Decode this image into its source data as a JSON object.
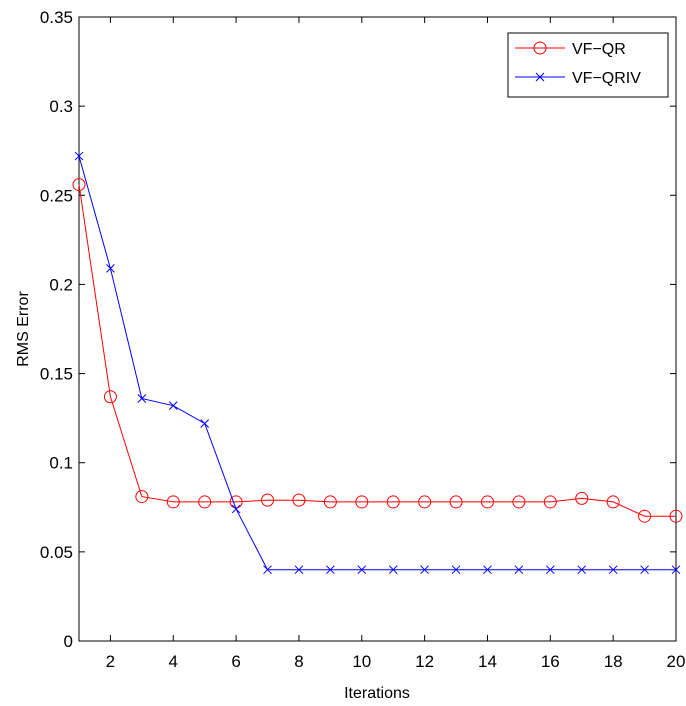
{
  "chart_data": {
    "type": "line",
    "title": "",
    "xlabel": "Iterations",
    "ylabel": "RMS Error",
    "xlim": [
      1,
      20
    ],
    "ylim": [
      0,
      0.35
    ],
    "xticks": [
      2,
      4,
      6,
      8,
      10,
      12,
      14,
      16,
      18,
      20
    ],
    "xtick_labels": [
      "2",
      "4",
      "6",
      "8",
      "10",
      "12",
      "14",
      "16",
      "18",
      "20"
    ],
    "yticks": [
      0,
      0.05,
      0.1,
      0.15,
      0.2,
      0.25,
      0.3,
      0.35
    ],
    "ytick_labels": [
      "0",
      "0.05",
      "0.1",
      "0.15",
      "0.2",
      "0.25",
      "0.3",
      "0.35"
    ],
    "grid": false,
    "legend_position": "top-right",
    "x": [
      1,
      2,
      3,
      4,
      5,
      6,
      7,
      8,
      9,
      10,
      11,
      12,
      13,
      14,
      15,
      16,
      17,
      18,
      19,
      20
    ],
    "series": [
      {
        "name": "VF−QR",
        "color": "#ff0000",
        "marker": "circle",
        "values": [
          0.256,
          0.137,
          0.081,
          0.078,
          0.078,
          0.078,
          0.079,
          0.079,
          0.078,
          0.078,
          0.078,
          0.078,
          0.078,
          0.078,
          0.078,
          0.078,
          0.08,
          0.078,
          0.07,
          0.07
        ]
      },
      {
        "name": "VF−QRIV",
        "color": "#0000ff",
        "marker": "x",
        "values": [
          0.272,
          0.209,
          0.136,
          0.132,
          0.122,
          0.074,
          0.04,
          0.04,
          0.04,
          0.04,
          0.04,
          0.04,
          0.04,
          0.04,
          0.04,
          0.04,
          0.04,
          0.04,
          0.04,
          0.04
        ]
      }
    ]
  }
}
